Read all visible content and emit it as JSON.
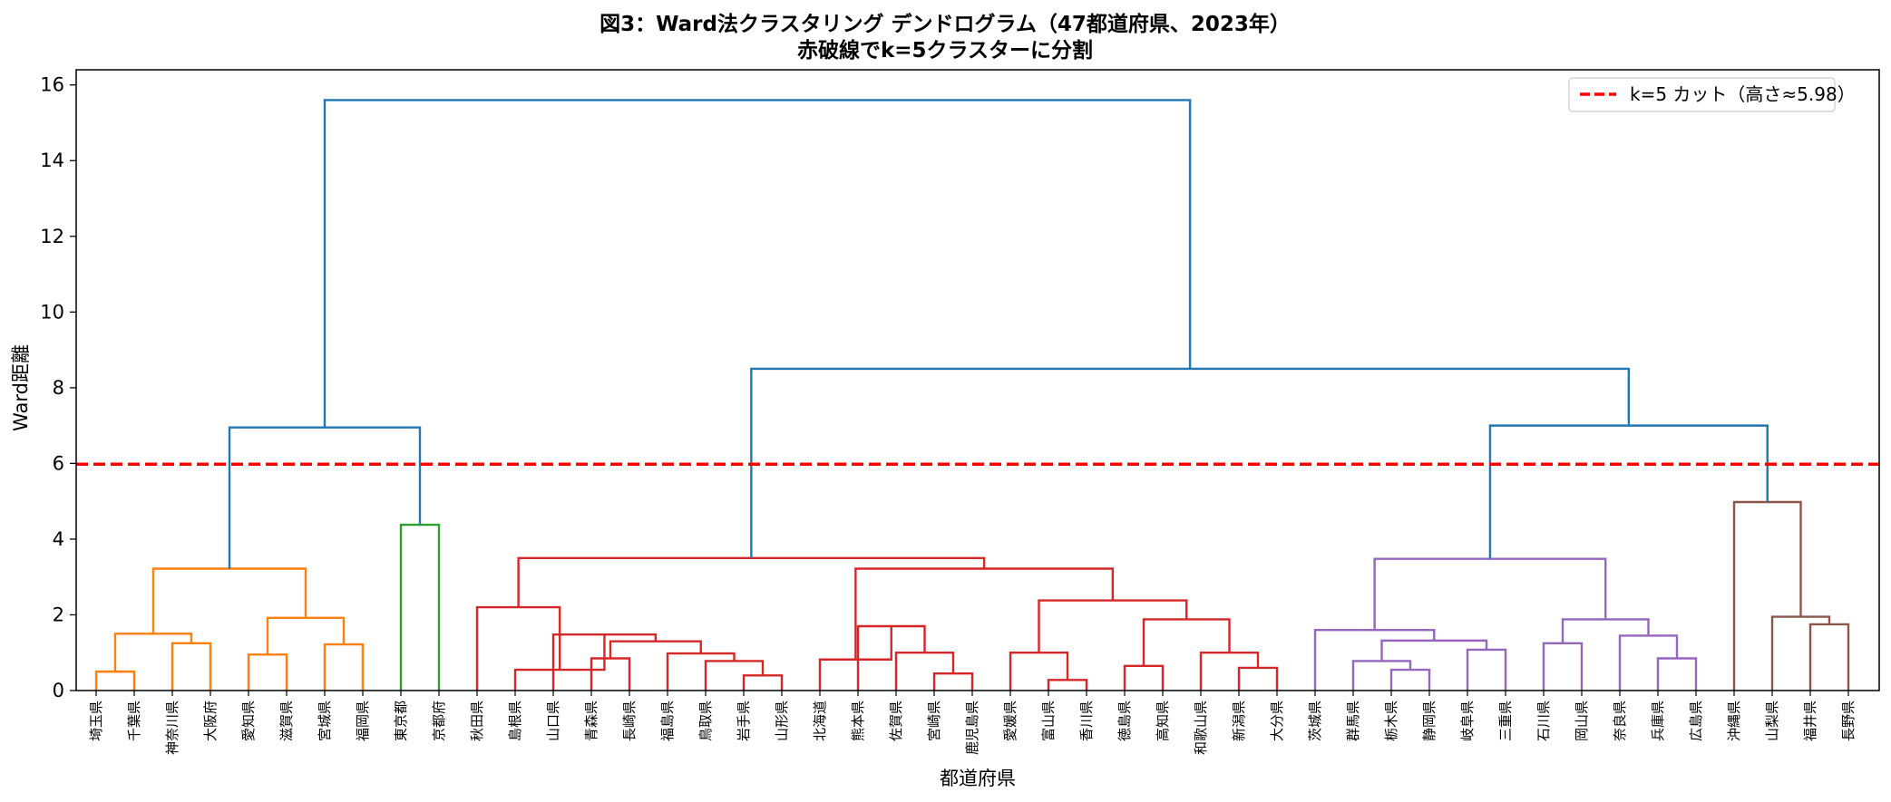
{
  "chart_data": {
    "type": "dendrogram",
    "title": "図3：Ward法クラスタリング デンドログラム（47都道府県、2023年）",
    "subtitle": "赤破線でk=5クラスターに分割",
    "xlabel": "都道府県",
    "ylabel": "Ward距離",
    "ylim": [
      0,
      16.4
    ],
    "yticks": [
      0,
      2,
      4,
      6,
      8,
      10,
      12,
      14,
      16
    ],
    "leaves": [
      "埼玉県",
      "千葉県",
      "神奈川県",
      "大阪府",
      "愛知県",
      "滋賀県",
      "宮城県",
      "福岡県",
      "東京都",
      "京都府",
      "秋田県",
      "島根県",
      "山口県",
      "青森県",
      "長崎県",
      "福島県",
      "鳥取県",
      "岩手県",
      "山形県",
      "北海道",
      "熊本県",
      "佐賀県",
      "宮崎県",
      "鹿児島県",
      "愛媛県",
      "富山県",
      "香川県",
      "徳島県",
      "高知県",
      "和歌山県",
      "新潟県",
      "大分県",
      "茨城県",
      "群馬県",
      "栃木県",
      "静岡県",
      "岐阜県",
      "三重県",
      "石川県",
      "岡山県",
      "奈良県",
      "兵庫県",
      "広島県",
      "沖縄県",
      "山梨県",
      "福井県",
      "長野県"
    ],
    "cut": {
      "height": 5.98,
      "color": "#ff0000",
      "label": "k=5 カット（高さ≈5.98）"
    },
    "legend_position": "top-right",
    "colors": {
      "c1": "#ff7f0e",
      "c2": "#2ca02c",
      "c3": "#d62728",
      "c4": "#9467bd",
      "c5": "#8c564b",
      "above": "#1f77b4"
    },
    "merges": [
      [
        0,
        1,
        0.5,
        "c1"
      ],
      [
        2,
        3,
        1.25,
        "c1"
      ],
      [
        47,
        48,
        1.5,
        "c1"
      ],
      [
        4,
        5,
        0.95,
        "c1"
      ],
      [
        6,
        7,
        1.22,
        "c1"
      ],
      [
        50,
        51,
        1.92,
        "c1"
      ],
      [
        49,
        52,
        3.22,
        "c1"
      ],
      [
        8,
        9,
        4.38,
        "c2"
      ],
      [
        53,
        54,
        6.95,
        "above"
      ],
      [
        17,
        18,
        0.4,
        "c3"
      ],
      [
        16,
        56,
        0.78,
        "c3"
      ],
      [
        15,
        57,
        0.98,
        "c3"
      ],
      [
        13,
        14,
        0.85,
        "c3"
      ],
      [
        59,
        58,
        1.3,
        "c3"
      ],
      [
        12,
        60,
        1.48,
        "c3"
      ],
      [
        11,
        61,
        0.55,
        "c3"
      ],
      [
        62,
        10,
        2.2,
        "c3"
      ],
      [
        22,
        23,
        0.45,
        "c3"
      ],
      [
        21,
        64,
        1.0,
        "c3"
      ],
      [
        20,
        65,
        1.7,
        "c3"
      ],
      [
        19,
        66,
        0.82,
        "c3"
      ],
      [
        25,
        26,
        0.28,
        "c3"
      ],
      [
        24,
        68,
        1.0,
        "c3"
      ],
      [
        30,
        31,
        0.6,
        "c3"
      ],
      [
        29,
        70,
        1.0,
        "c3"
      ],
      [
        27,
        28,
        0.65,
        "c3"
      ],
      [
        72,
        71,
        1.88,
        "c3"
      ],
      [
        69,
        73,
        2.38,
        "c3"
      ],
      [
        67,
        74,
        3.22,
        "c3"
      ],
      [
        63,
        75,
        3.5,
        "c3"
      ],
      [
        34,
        35,
        0.55,
        "c4"
      ],
      [
        33,
        77,
        0.78,
        "c4"
      ],
      [
        36,
        37,
        1.08,
        "c4"
      ],
      [
        78,
        79,
        1.32,
        "c4"
      ],
      [
        32,
        80,
        1.6,
        "c4"
      ],
      [
        41,
        42,
        0.85,
        "c4"
      ],
      [
        40,
        82,
        1.45,
        "c4"
      ],
      [
        38,
        39,
        1.25,
        "c4"
      ],
      [
        84,
        83,
        1.88,
        "c4"
      ],
      [
        81,
        85,
        3.48,
        "c4"
      ],
      [
        45,
        46,
        1.75,
        "c5"
      ],
      [
        44,
        87,
        1.95,
        "c5"
      ],
      [
        43,
        88,
        4.98,
        "c5"
      ],
      [
        86,
        89,
        7.0,
        "above"
      ],
      [
        76,
        90,
        8.5,
        "above"
      ],
      [
        55,
        91,
        15.6,
        "above"
      ]
    ]
  }
}
